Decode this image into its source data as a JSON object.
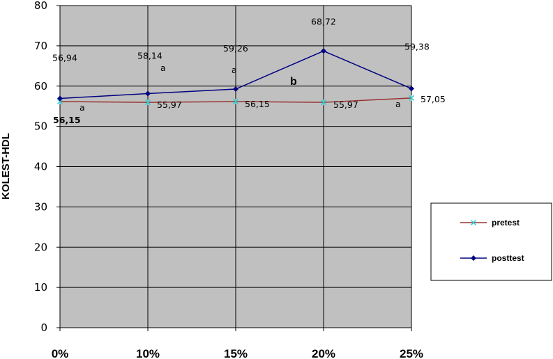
{
  "chart_data": {
    "type": "line",
    "title": "",
    "xlabel": "",
    "ylabel": "KOLEST-HDL",
    "categories": [
      "0%",
      "10%",
      "15%",
      "20%",
      "25%"
    ],
    "ylim": [
      0,
      80
    ],
    "yticks": [
      "0",
      "10",
      "20",
      "30",
      "40",
      "50",
      "60",
      "70",
      "80"
    ],
    "grid": true,
    "legend_position": "right",
    "series": [
      {
        "name": "pretest",
        "values": [
          56.15,
          55.97,
          56.15,
          55.97,
          57.05
        ],
        "labels": [
          "56,15",
          "55,97",
          "56,15",
          "55,97",
          "57,05"
        ],
        "line_color": "#993333",
        "marker_color": "#33cccc",
        "marker": "x"
      },
      {
        "name": "posttest",
        "values": [
          56.94,
          58.14,
          59.26,
          68.72,
          59.38
        ],
        "labels": [
          "56,94",
          "58,14",
          "59,26",
          "68,72",
          "59,38"
        ],
        "line_color": "#000080",
        "marker_color": "#000080",
        "marker": "diamond"
      }
    ],
    "annotations": [
      "a",
      "a",
      "a",
      "b",
      "a"
    ],
    "plot_background": "#c0c0c0"
  }
}
